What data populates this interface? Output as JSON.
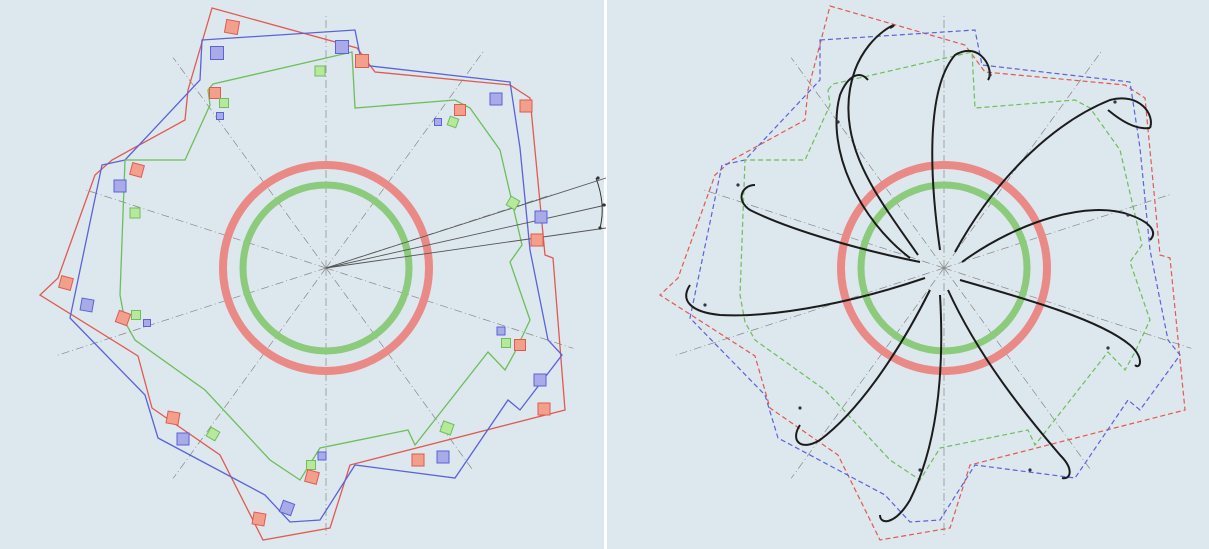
{
  "colors": {
    "background": "#dde7ee",
    "outer_outline": "#e05a50",
    "middle_outline": "#5a63d8",
    "inner_outline": "#6cbf5a",
    "outer_ring": "#e98a86",
    "inner_ring": "#8cca7c",
    "blade": "#1c1c1c",
    "construction": "#888888",
    "marker_red_fill": "#f2a08c",
    "marker_blue_fill": "#a9aae8",
    "marker_green_fill": "#b8e89c"
  },
  "panels": [
    {
      "name": "left-panel",
      "style": "markers"
    },
    {
      "name": "right-panel",
      "style": "blades"
    }
  ]
}
